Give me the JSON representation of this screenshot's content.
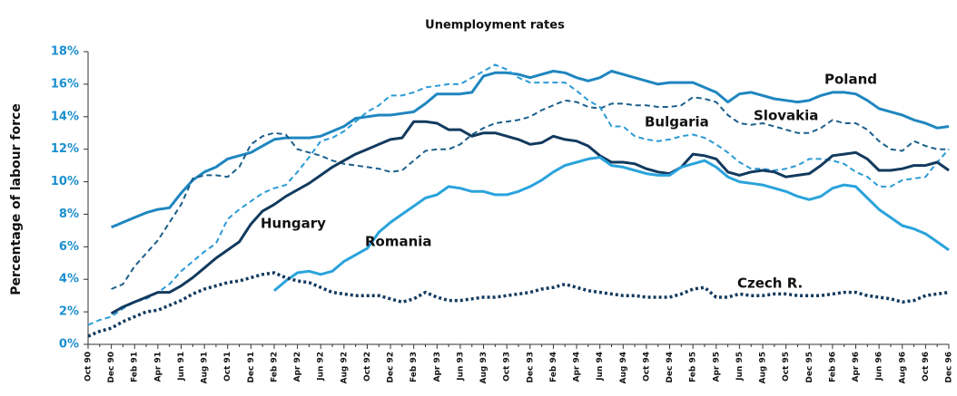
{
  "chart_data": {
    "type": "line",
    "title": "Unemployment rates",
    "y_label": "Percentage of labour force",
    "categories": [
      "Oct 90",
      null,
      "Dec 90",
      null,
      "Feb 91",
      null,
      "Apr 91",
      null,
      "Jun 91",
      null,
      "Aug 91",
      null,
      "Oct 91",
      null,
      "Dec 91",
      null,
      "Feb 92",
      null,
      "Apr 92",
      null,
      "Jun 92",
      null,
      "Aug 92",
      null,
      "Oct 92",
      null,
      "Dec 92",
      null,
      "Feb 93",
      null,
      "Apr 93",
      null,
      "Jun 93",
      null,
      "Aug 93",
      null,
      "Oct 93",
      null,
      "Dec 93",
      null,
      "Feb 94",
      null,
      "Apr 94",
      null,
      "Jun 94",
      null,
      "Aug 94",
      null,
      "Oct 94",
      null,
      "Dec 94",
      null,
      "Feb 95",
      null,
      "Apr 95",
      null,
      "Jun 95",
      null,
      "Aug 95",
      null,
      "Oct 95",
      null,
      "Dec 95",
      null,
      "Feb 96",
      null,
      "Apr 96",
      null,
      "Jun 96",
      null,
      "Aug 96",
      null,
      "Oct 96",
      null,
      "Dec 96"
    ],
    "ylim": [
      0,
      18
    ],
    "yticks": [
      {
        "value": 0,
        "label": "0%"
      },
      {
        "value": 2,
        "label": "2%"
      },
      {
        "value": 4,
        "label": "4%"
      },
      {
        "value": 6,
        "label": "6%"
      },
      {
        "value": 8,
        "label": "8%"
      },
      {
        "value": 10,
        "label": "10%"
      },
      {
        "value": 12,
        "label": "12%"
      },
      {
        "value": 14,
        "label": "14%"
      },
      {
        "value": 16,
        "label": "16%"
      },
      {
        "value": 18,
        "label": "18%"
      }
    ],
    "grid": false,
    "series": [
      {
        "name": "Poland",
        "color": "#1f86c0",
        "line_style": "solid",
        "values": [
          null,
          null,
          7.2,
          7.5,
          7.8,
          8.1,
          8.3,
          8.4,
          9.3,
          10.1,
          10.6,
          10.9,
          11.4,
          11.6,
          11.8,
          12.2,
          12.6,
          12.7,
          12.7,
          12.7,
          12.8,
          13.1,
          13.4,
          13.9,
          14.0,
          14.1,
          14.1,
          14.2,
          14.3,
          14.8,
          15.4,
          15.4,
          15.4,
          15.5,
          16.5,
          16.7,
          16.7,
          16.6,
          16.4,
          16.6,
          16.8,
          16.7,
          16.4,
          16.2,
          16.4,
          16.8,
          16.6,
          16.4,
          16.2,
          16.0,
          16.1,
          16.1,
          16.1,
          15.8,
          15.5,
          14.9,
          15.4,
          15.5,
          15.3,
          15.1,
          15.0,
          14.9,
          15.0,
          15.3,
          15.5,
          15.5,
          15.4,
          15.0,
          14.5,
          14.3,
          14.1,
          13.8,
          13.6,
          13.3,
          13.4
        ]
      },
      {
        "name": "Slovakia",
        "color": "#1b5f8c",
        "line_style": "dashed",
        "values": [
          null,
          null,
          3.4,
          3.7,
          4.8,
          5.6,
          6.4,
          7.5,
          8.6,
          10.2,
          10.4,
          10.4,
          10.3,
          10.9,
          12.3,
          12.8,
          13.0,
          12.9,
          12.0,
          11.8,
          11.6,
          11.3,
          11.1,
          11.0,
          10.9,
          10.8,
          10.6,
          10.7,
          11.3,
          11.9,
          12.0,
          12.0,
          12.3,
          12.9,
          13.3,
          13.6,
          13.7,
          13.8,
          14.0,
          14.4,
          14.7,
          15.0,
          14.9,
          14.6,
          14.5,
          14.8,
          14.8,
          14.7,
          14.7,
          14.6,
          14.6,
          14.7,
          15.2,
          15.1,
          14.9,
          14.1,
          13.6,
          13.5,
          13.6,
          13.4,
          13.2,
          13.0,
          13.0,
          13.3,
          13.8,
          13.6,
          13.6,
          13.2,
          12.5,
          12.0,
          11.9,
          12.5,
          12.2,
          12.0,
          12.0
        ]
      },
      {
        "name": "Bulgaria",
        "color": "#2a9ad6",
        "line_style": "dashed",
        "values": [
          1.2,
          1.5,
          1.7,
          2.2,
          2.6,
          2.8,
          3.2,
          3.7,
          4.5,
          5.1,
          5.7,
          6.2,
          7.7,
          8.3,
          8.8,
          9.3,
          9.6,
          9.8,
          10.6,
          11.5,
          12.5,
          12.7,
          13.1,
          13.7,
          14.3,
          14.7,
          15.3,
          15.3,
          15.5,
          15.8,
          15.9,
          16.0,
          16.0,
          16.4,
          16.8,
          17.2,
          16.9,
          16.4,
          16.1,
          16.1,
          16.1,
          16.1,
          15.6,
          15.0,
          14.6,
          13.4,
          13.4,
          12.8,
          12.6,
          12.5,
          12.6,
          12.8,
          12.9,
          12.7,
          12.3,
          11.8,
          11.2,
          10.8,
          10.8,
          10.7,
          10.8,
          11.0,
          11.4,
          11.4,
          11.3,
          11.1,
          10.6,
          10.3,
          9.7,
          9.7,
          10.1,
          10.2,
          10.3,
          11.2,
          12.0
        ]
      },
      {
        "name": "Hungary",
        "color": "#123a5e",
        "line_style": "solid",
        "values": [
          null,
          null,
          1.9,
          2.3,
          2.6,
          2.9,
          3.2,
          3.2,
          3.6,
          4.1,
          4.7,
          5.3,
          5.8,
          6.3,
          7.4,
          8.2,
          8.6,
          9.1,
          9.5,
          9.9,
          10.4,
          10.9,
          11.3,
          11.7,
          12.0,
          12.3,
          12.6,
          12.7,
          13.7,
          13.7,
          13.6,
          13.2,
          13.2,
          12.8,
          13.0,
          13.0,
          12.8,
          12.6,
          12.3,
          12.4,
          12.8,
          12.6,
          12.5,
          12.2,
          11.6,
          11.2,
          11.2,
          11.1,
          10.8,
          10.6,
          10.5,
          10.9,
          11.7,
          11.6,
          11.4,
          10.6,
          10.4,
          10.6,
          10.7,
          10.6,
          10.3,
          10.4,
          10.5,
          11.0,
          11.6,
          11.7,
          11.8,
          11.4,
          10.7,
          10.7,
          10.8,
          11.0,
          11.0,
          11.2,
          10.7
        ]
      },
      {
        "name": "Romania",
        "color": "#2aa3dc",
        "line_style": "solid",
        "values": [
          null,
          null,
          null,
          null,
          null,
          null,
          null,
          null,
          null,
          null,
          null,
          null,
          null,
          null,
          null,
          null,
          3.3,
          3.9,
          4.4,
          4.5,
          4.3,
          4.5,
          5.1,
          5.5,
          5.9,
          6.9,
          7.5,
          8.0,
          8.5,
          9.0,
          9.2,
          9.7,
          9.6,
          9.4,
          9.4,
          9.2,
          9.2,
          9.4,
          9.7,
          10.1,
          10.6,
          11.0,
          11.2,
          11.4,
          11.5,
          11.0,
          10.9,
          10.7,
          10.5,
          10.4,
          10.4,
          10.9,
          11.1,
          11.3,
          10.9,
          10.3,
          10.0,
          9.9,
          9.8,
          9.6,
          9.4,
          9.1,
          8.9,
          9.1,
          9.6,
          9.8,
          9.7,
          9.0,
          8.3,
          7.8,
          7.3,
          7.1,
          6.8,
          6.3,
          5.8
        ]
      },
      {
        "name": "Czech R.",
        "color": "#123a5e",
        "line_style": "dotted",
        "values": [
          0.5,
          0.8,
          1.0,
          1.4,
          1.7,
          2.0,
          2.1,
          2.4,
          2.7,
          3.1,
          3.4,
          3.6,
          3.8,
          3.9,
          4.1,
          4.3,
          4.4,
          4.1,
          3.9,
          3.8,
          3.5,
          3.2,
          3.1,
          3.0,
          3.0,
          3.0,
          2.8,
          2.6,
          2.8,
          3.2,
          2.9,
          2.7,
          2.7,
          2.8,
          2.9,
          2.9,
          3.0,
          3.1,
          3.2,
          3.4,
          3.5,
          3.7,
          3.5,
          3.3,
          3.2,
          3.1,
          3.0,
          3.0,
          2.9,
          2.9,
          2.9,
          3.1,
          3.4,
          3.5,
          2.9,
          2.9,
          3.1,
          3.0,
          3.0,
          3.1,
          3.1,
          3.0,
          3.0,
          3.0,
          3.1,
          3.2,
          3.2,
          3.0,
          2.9,
          2.8,
          2.6,
          2.7,
          3.0,
          3.1,
          3.2
        ]
      }
    ]
  }
}
